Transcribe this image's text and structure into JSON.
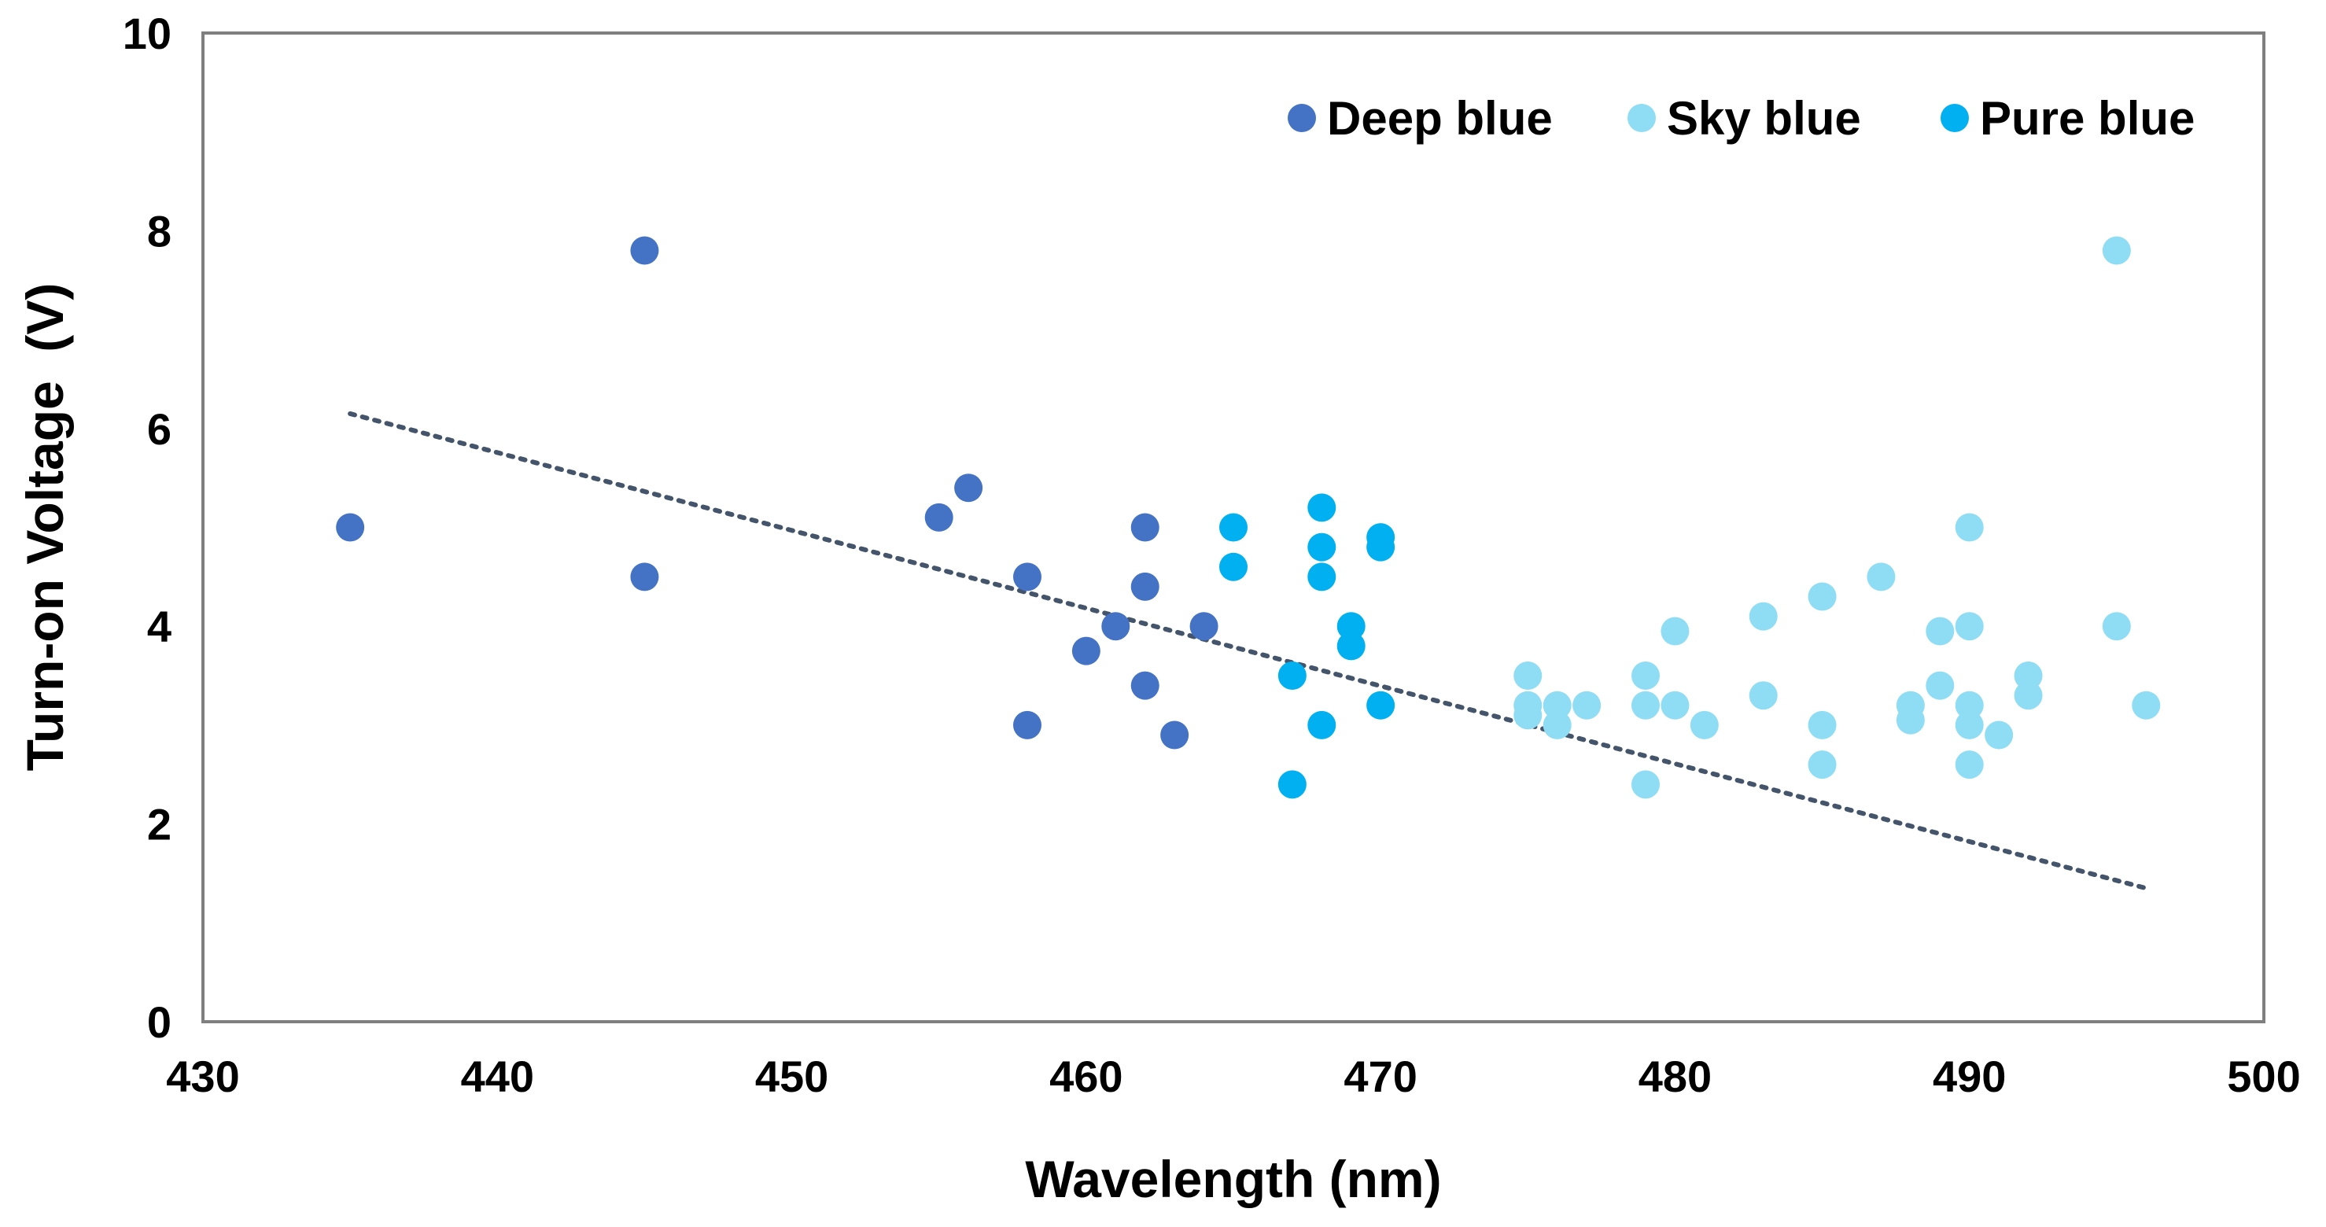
{
  "chart_data": {
    "type": "scatter",
    "title": "",
    "xlabel": "Wavelength (nm)",
    "ylabel": "Turn-on Voltage  (V)",
    "xlim": [
      430,
      500
    ],
    "ylim": [
      0,
      10
    ],
    "xticks": [
      "430",
      "440",
      "450",
      "460",
      "470",
      "480",
      "490",
      "500"
    ],
    "yticks": [
      "0",
      "2",
      "4",
      "6",
      "8",
      "10"
    ],
    "legend_position": "top-right",
    "series": [
      {
        "name": "Deep blue",
        "color": "#4472C4",
        "points": [
          [
            435,
            5.0
          ],
          [
            445,
            7.8
          ],
          [
            445,
            4.5
          ],
          [
            455,
            5.1
          ],
          [
            456,
            5.4
          ],
          [
            458,
            4.5
          ],
          [
            458,
            3.0
          ],
          [
            460,
            3.75
          ],
          [
            461,
            4.0
          ],
          [
            462,
            5.0
          ],
          [
            462,
            4.4
          ],
          [
            462,
            3.4
          ],
          [
            463,
            2.9
          ],
          [
            464,
            4.0
          ]
        ]
      },
      {
        "name": "Sky blue",
        "color": "#8FDDF5",
        "points": [
          [
            475,
            3.5
          ],
          [
            475,
            3.2
          ],
          [
            475,
            3.1
          ],
          [
            476,
            3.2
          ],
          [
            476,
            3.0
          ],
          [
            477,
            3.2
          ],
          [
            479,
            3.5
          ],
          [
            479,
            3.2
          ],
          [
            479,
            2.4
          ],
          [
            480,
            3.95
          ],
          [
            480,
            3.2
          ],
          [
            481,
            3.0
          ],
          [
            483,
            4.1
          ],
          [
            483,
            3.3
          ],
          [
            485,
            4.3
          ],
          [
            485,
            3.0
          ],
          [
            485,
            2.6
          ],
          [
            487,
            4.5
          ],
          [
            488,
            3.2
          ],
          [
            488,
            3.05
          ],
          [
            489,
            3.95
          ],
          [
            489,
            3.4
          ],
          [
            490,
            5.0
          ],
          [
            490,
            4.0
          ],
          [
            490,
            3.2
          ],
          [
            490,
            3.0
          ],
          [
            490,
            2.6
          ],
          [
            491,
            2.9
          ],
          [
            492,
            3.5
          ],
          [
            492,
            3.3
          ],
          [
            495,
            7.8
          ],
          [
            495,
            4.0
          ],
          [
            496,
            3.2
          ]
        ]
      },
      {
        "name": "Pure blue",
        "color": "#00B0F0",
        "points": [
          [
            465,
            5.0
          ],
          [
            465,
            4.6
          ],
          [
            467,
            3.5
          ],
          [
            467,
            2.4
          ],
          [
            468,
            5.2
          ],
          [
            468,
            4.8
          ],
          [
            468,
            4.5
          ],
          [
            468,
            3.0
          ],
          [
            469,
            4.0
          ],
          [
            469,
            3.8
          ],
          [
            470,
            4.9
          ],
          [
            470,
            4.8
          ],
          [
            470,
            3.2
          ]
        ]
      }
    ],
    "trendline": {
      "style": "dotted",
      "color": "#44546A",
      "x": [
        435,
        496
      ],
      "y": [
        6.15,
        1.35
      ]
    }
  }
}
